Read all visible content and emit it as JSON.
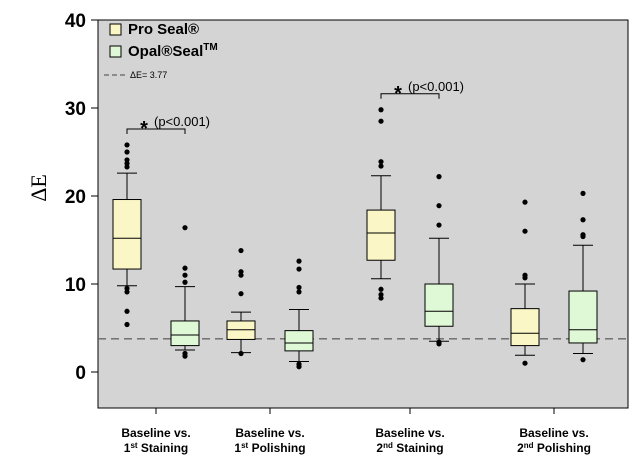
{
  "chart_data": {
    "type": "box",
    "ylabel": "ΔE",
    "ylim": [
      -4,
      40
    ],
    "yticks": [
      0,
      10,
      20,
      30,
      40
    ],
    "grid": false,
    "legend_position": "top-left",
    "background": "#d4d4d4",
    "categories": [
      {
        "line1": "Baseline vs.",
        "num": "1",
        "sup": "st",
        "rest": " Staining"
      },
      {
        "line1": "Baseline vs.",
        "num": "1",
        "sup": "st",
        "rest": " Polishing"
      },
      {
        "line1": "Baseline vs.",
        "num": "2",
        "sup": "nd",
        "rest": " Staining"
      },
      {
        "line1": "Baseline vs.",
        "num": "2",
        "sup": "nd",
        "rest": " Polishing"
      }
    ],
    "series": [
      {
        "name": "Pro Seal®",
        "color": "#fbf6c6",
        "boxes": [
          {
            "whislo": 9.8,
            "q1": 11.7,
            "med": 15.2,
            "q3": 19.6,
            "whishi": 22.6,
            "fliers": [
              5.4,
              6.9,
              9.1,
              9.5,
              23.3,
              23.7,
              24.1,
              25.0,
              25.8
            ]
          },
          {
            "whislo": 2.2,
            "q1": 3.7,
            "med": 4.8,
            "q3": 5.8,
            "whishi": 6.8,
            "fliers": [
              2.1,
              8.9,
              11.0,
              11.4,
              13.8
            ]
          },
          {
            "whislo": 10.6,
            "q1": 12.7,
            "med": 15.8,
            "q3": 18.4,
            "whishi": 22.3,
            "fliers": [
              8.4,
              8.8,
              9.4,
              23.4,
              23.9,
              28.5,
              29.8
            ]
          },
          {
            "whislo": 1.9,
            "q1": 3.0,
            "med": 4.4,
            "q3": 7.2,
            "whishi": 10.0,
            "fliers": [
              1.0,
              10.7,
              11.0,
              16.0,
              19.3
            ]
          }
        ]
      },
      {
        "name": "Opal®Seal",
        "name_sup": "TM",
        "color": "#dff8d6",
        "boxes": [
          {
            "whislo": 2.5,
            "q1": 3.0,
            "med": 4.2,
            "q3": 5.8,
            "whishi": 9.7,
            "fliers": [
              1.8,
              2.1,
              10.2,
              11.0,
              11.8,
              16.4
            ]
          },
          {
            "whislo": 1.2,
            "q1": 2.4,
            "med": 3.3,
            "q3": 4.7,
            "whishi": 7.1,
            "fliers": [
              0.6,
              0.9,
              9.1,
              9.6,
              11.7,
              12.6
            ]
          },
          {
            "whislo": 3.5,
            "q1": 5.2,
            "med": 6.9,
            "q3": 10.0,
            "whishi": 15.2,
            "fliers": [
              3.2,
              3.4,
              16.7,
              18.9,
              22.2
            ]
          },
          {
            "whislo": 2.1,
            "q1": 3.3,
            "med": 4.8,
            "q3": 9.2,
            "whishi": 14.4,
            "fliers": [
              1.4,
              15.4,
              15.6,
              17.3,
              20.3
            ]
          }
        ]
      }
    ],
    "reference_line": {
      "value": 3.77,
      "label": "ΔE= 3.77"
    },
    "annotations": [
      {
        "category": 0,
        "star": "*",
        "text": "(p<0.001)"
      },
      {
        "category": 2,
        "star": "*",
        "text": "(p<0.001)"
      }
    ]
  }
}
